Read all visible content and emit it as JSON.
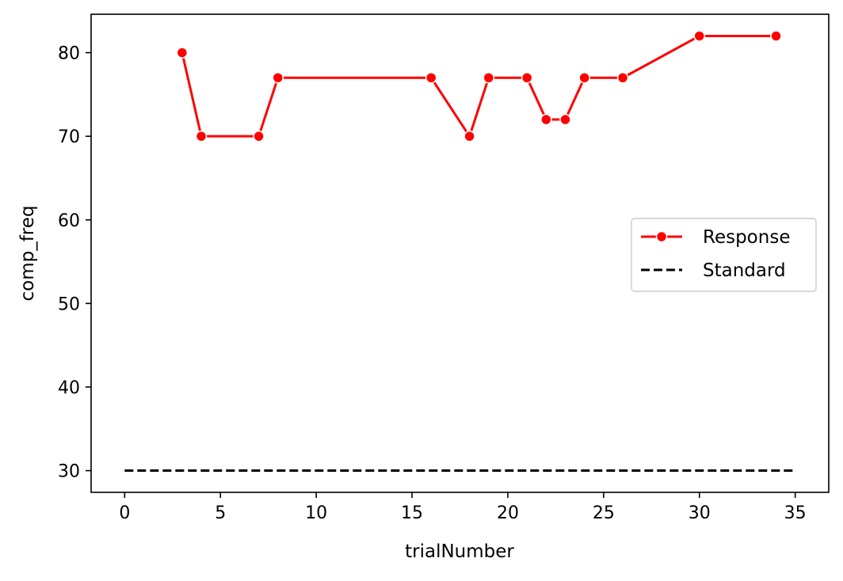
{
  "chart_data": {
    "type": "line",
    "title": "",
    "xlabel": "trialNumber",
    "ylabel": "comp_freq",
    "xlim": [
      -1.75,
      36.75
    ],
    "ylim": [
      27.4,
      84.6
    ],
    "xticks": [
      0,
      5,
      10,
      15,
      20,
      25,
      30,
      35
    ],
    "yticks": [
      30,
      40,
      50,
      60,
      70,
      80
    ],
    "grid": false,
    "legend_position": "center-right",
    "series": [
      {
        "name": "Response",
        "color": "#ff0000",
        "style": "solid-with-markers",
        "x": [
          3,
          4,
          7,
          8,
          16,
          18,
          19,
          21,
          22,
          23,
          24,
          26,
          30,
          34
        ],
        "y": [
          80,
          70,
          70,
          77,
          77,
          70,
          77,
          77,
          72,
          72,
          77,
          77,
          82,
          82
        ]
      },
      {
        "name": "Standard",
        "color": "#000000",
        "style": "dashed",
        "x": [
          0,
          35
        ],
        "y": [
          30,
          30
        ]
      }
    ]
  }
}
